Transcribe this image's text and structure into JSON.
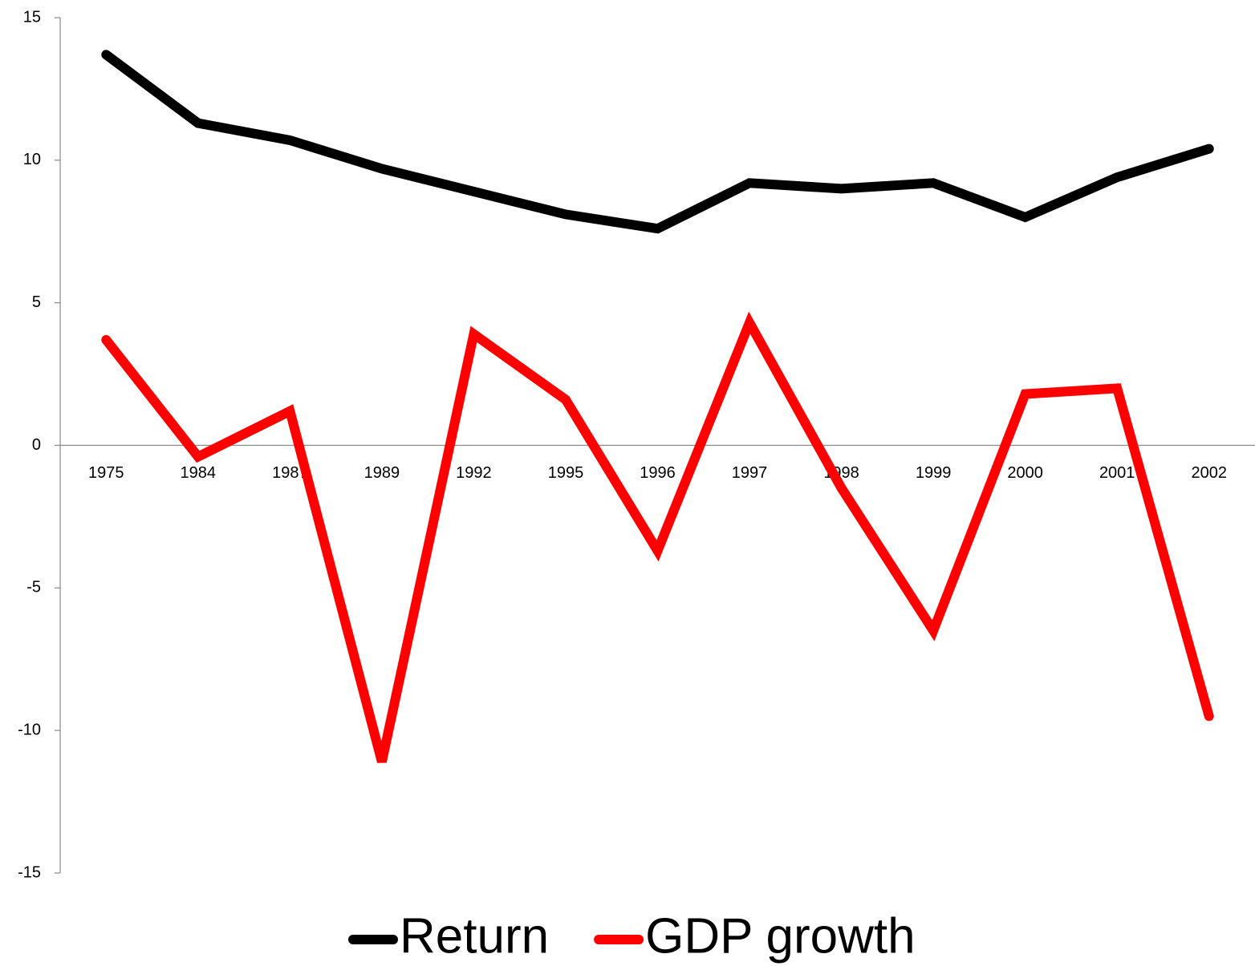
{
  "chart_data": {
    "type": "line",
    "categories": [
      "1975",
      "1984",
      "1987",
      "1989",
      "1992",
      "1995",
      "1996",
      "1997",
      "1998",
      "1999",
      "2000",
      "2001",
      "2002"
    ],
    "series": [
      {
        "name": "Return",
        "color": "#000000",
        "values": [
          13.7,
          11.3,
          10.7,
          9.7,
          8.9,
          8.1,
          7.6,
          9.2,
          9.0,
          9.2,
          8.0,
          9.4,
          10.4
        ]
      },
      {
        "name": "GDP growth",
        "color": "#ff0000",
        "values": [
          3.7,
          -0.4,
          1.2,
          -11.1,
          3.9,
          1.6,
          -3.7,
          4.3,
          -1.5,
          -6.5,
          1.8,
          2.0,
          -9.5
        ]
      }
    ],
    "ylim": [
      -15,
      15
    ],
    "yticks": [
      -15,
      -10,
      -5,
      0,
      5,
      10,
      15
    ],
    "legend": "bottom"
  }
}
